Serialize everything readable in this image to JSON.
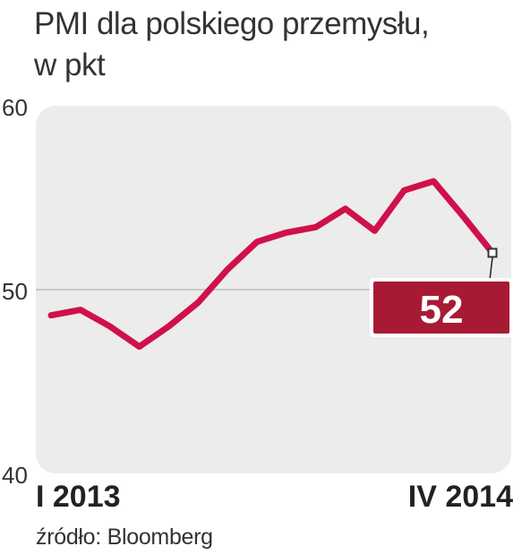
{
  "title_line1": "PMI dla polskiego przemysłu,",
  "title_line2": "w pkt",
  "source": "źródło: Bloomberg",
  "chart_data": {
    "type": "line",
    "title": "PMI dla polskiego przemysłu, w pkt",
    "x": [
      "2013-01",
      "2013-02",
      "2013-03",
      "2013-04",
      "2013-05",
      "2013-06",
      "2013-07",
      "2013-08",
      "2013-09",
      "2013-10",
      "2013-11",
      "2013-12",
      "2014-01",
      "2014-02",
      "2014-03",
      "2014-04"
    ],
    "x_tick_labels": [
      "I 2013",
      "IV 2014"
    ],
    "y_ticks": [
      40,
      50,
      60
    ],
    "ylim": [
      40,
      60
    ],
    "series": [
      {
        "values": [
          48.6,
          48.9,
          48.0,
          46.9,
          48.0,
          49.3,
          51.1,
          52.6,
          53.1,
          53.4,
          54.4,
          53.2,
          55.4,
          55.9,
          54.0,
          52.0
        ]
      }
    ],
    "callout_value": "52",
    "grid": "line at 50",
    "line_color": "#d0104a",
    "callout_color": "#a81a33",
    "plot_background": "#ececec"
  }
}
